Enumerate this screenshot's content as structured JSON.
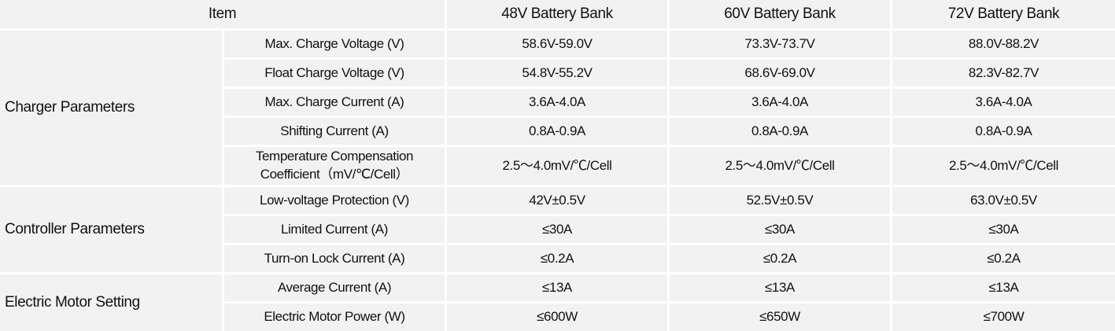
{
  "table": {
    "header": [
      "Item",
      "48V Battery Bank",
      "60V Battery Bank",
      "72V Battery Bank"
    ],
    "groups": [
      {
        "name": "Charger Parameters",
        "rows": [
          [
            "Max. Charge Voltage (V)",
            "58.6V-59.0V",
            "73.3V-73.7V",
            "88.0V-88.2V"
          ],
          [
            "Float Charge Voltage (V)",
            "54.8V-55.2V",
            "68.6V-69.0V",
            "82.3V-82.7V"
          ],
          [
            "Max. Charge Current (A)",
            "3.6A-4.0A",
            "3.6A-4.0A",
            "3.6A-4.0A"
          ],
          [
            "Shifting Current (A)",
            "0.8A-0.9A",
            "0.8A-0.9A",
            "0.8A-0.9A"
          ],
          [
            "Temperature Compensation\nCoefficient（mV/℃/Cell）",
            "2.5～4.0mV/℃/Cell",
            "2.5～4.0mV/℃/Cell",
            "2.5～4.0mV/℃/Cell"
          ]
        ]
      },
      {
        "name": "Controller Parameters",
        "rows": [
          [
            "Low-voltage Protection (V)",
            "42V±0.5V",
            "52.5V±0.5V",
            "63.0V±0.5V"
          ],
          [
            "Limited Current  (A)",
            "≤30A",
            "≤30A",
            "≤30A"
          ],
          [
            "Turn-on Lock Current (A)",
            "≤0.2A",
            "≤0.2A",
            "≤0.2A"
          ]
        ]
      },
      {
        "name": "Electric Motor Setting",
        "rows": [
          [
            "Average Current (A)",
            "≤13A",
            "≤13A",
            "≤13A"
          ],
          [
            "Electric Motor Power (W)",
            "≤600W",
            "≤650W",
            "≤700W"
          ]
        ]
      }
    ]
  }
}
